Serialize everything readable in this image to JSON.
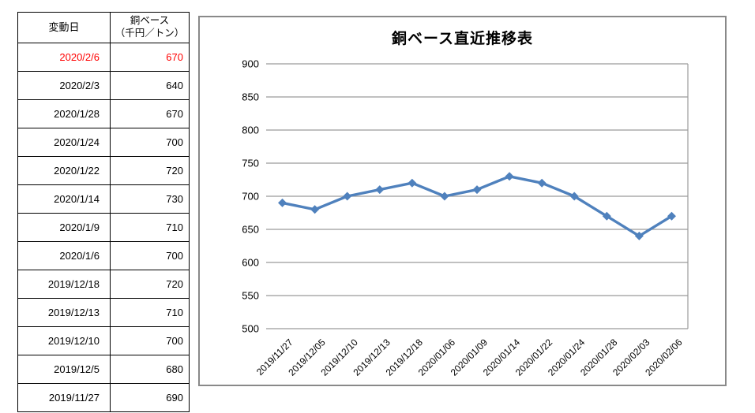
{
  "table": {
    "headers": {
      "date": "変動日",
      "value_line1": "銅ベース",
      "value_line2": "（千円／トン）"
    },
    "rows": [
      {
        "date": "2020/2/6",
        "value": "670",
        "highlight": true
      },
      {
        "date": "2020/2/3",
        "value": "640"
      },
      {
        "date": "2020/1/28",
        "value": "670"
      },
      {
        "date": "2020/1/24",
        "value": "700"
      },
      {
        "date": "2020/1/22",
        "value": "720"
      },
      {
        "date": "2020/1/14",
        "value": "730"
      },
      {
        "date": "2020/1/9",
        "value": "710"
      },
      {
        "date": "2020/1/6",
        "value": "700"
      },
      {
        "date": "2019/12/18",
        "value": "720"
      },
      {
        "date": "2019/12/13",
        "value": "710"
      },
      {
        "date": "2019/12/10",
        "value": "700"
      },
      {
        "date": "2019/12/5",
        "value": "680"
      },
      {
        "date": "2019/11/27",
        "value": "690"
      }
    ]
  },
  "chart_data": {
    "type": "line",
    "title": "銅ベース直近推移表",
    "categories": [
      "2019/11/27",
      "2019/12/05",
      "2019/12/10",
      "2019/12/13",
      "2019/12/18",
      "2020/01/06",
      "2020/01/09",
      "2020/01/14",
      "2020/01/22",
      "2020/01/24",
      "2020/01/28",
      "2020/02/03",
      "2020/02/06"
    ],
    "values": [
      690,
      680,
      700,
      710,
      720,
      700,
      710,
      730,
      720,
      700,
      670,
      640,
      670
    ],
    "xlabel": "",
    "ylabel": "",
    "ylim": [
      500,
      900
    ],
    "ytick_step": 50,
    "grid": true,
    "legend": "none",
    "marker": "diamond",
    "line_color": "#4F81BD",
    "grid_color": "#9B9B9B"
  },
  "colors": {
    "highlight": "#FF0000",
    "table_border": "#000000",
    "chart_border": "#898989"
  }
}
